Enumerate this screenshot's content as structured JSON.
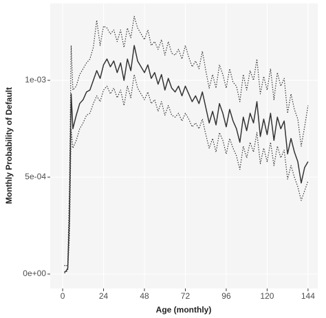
{
  "chart_data": {
    "type": "line",
    "x_label": "Age (monthly)",
    "y_label": "Monthly Probability of Default",
    "x": [
      1,
      2,
      3,
      4,
      5,
      6,
      8,
      10,
      12,
      14,
      16,
      18,
      20,
      22,
      24,
      26,
      28,
      30,
      32,
      34,
      36,
      38,
      40,
      42,
      44,
      46,
      48,
      50,
      52,
      54,
      56,
      58,
      60,
      62,
      64,
      66,
      68,
      70,
      72,
      74,
      76,
      78,
      80,
      82,
      84,
      86,
      88,
      90,
      92,
      94,
      96,
      98,
      100,
      102,
      104,
      106,
      108,
      110,
      112,
      114,
      116,
      118,
      120,
      122,
      124,
      126,
      128,
      130,
      132,
      134,
      136,
      138,
      140,
      142,
      144
    ],
    "series": [
      {
        "color": "#333333",
        "linestyle": "solid",
        "values": [
          1e-05,
          1.5e-05,
          3e-05,
          0.0003,
          0.00093,
          0.00075,
          0.00082,
          0.00088,
          0.0009,
          0.00094,
          0.00095,
          0.001,
          0.00105,
          0.00101,
          0.00108,
          0.00111,
          0.00107,
          0.0011,
          0.00104,
          0.00109,
          0.001,
          0.00111,
          0.00105,
          0.00118,
          0.0011,
          0.00107,
          0.00104,
          0.00108,
          0.00101,
          0.00104,
          0.00098,
          0.00103,
          0.00095,
          0.00101,
          0.00096,
          0.00094,
          0.00097,
          0.00092,
          0.00097,
          0.00093,
          0.00089,
          0.00092,
          0.00088,
          0.00094,
          0.00086,
          0.00078,
          0.00084,
          0.00077,
          0.00088,
          0.00083,
          0.00076,
          0.00085,
          0.00079,
          0.00075,
          0.00068,
          0.00081,
          0.00074,
          0.00083,
          0.00078,
          0.00089,
          0.00071,
          0.0008,
          0.00072,
          0.00083,
          0.00069,
          0.00081,
          0.00075,
          0.00079,
          0.00062,
          0.0007,
          0.00063,
          0.00058,
          0.00047,
          0.00055,
          0.00058
        ]
      },
      {
        "color": "#333333",
        "linestyle": "dotted",
        "values": [
          4.5e-05,
          4e-05,
          5e-05,
          0.00045,
          0.00118,
          0.00095,
          0.00097,
          0.00103,
          0.00106,
          0.00109,
          0.00111,
          0.00117,
          0.00131,
          0.00118,
          0.00128,
          0.00127,
          0.00124,
          0.00126,
          0.0012,
          0.00126,
          0.00117,
          0.00127,
          0.00122,
          0.00133,
          0.00127,
          0.00124,
          0.00121,
          0.00126,
          0.00118,
          0.0012,
          0.00116,
          0.00121,
          0.00113,
          0.0012,
          0.00114,
          0.00113,
          0.00116,
          0.00111,
          0.00118,
          0.00112,
          0.00107,
          0.0011,
          0.00106,
          0.00115,
          0.00105,
          0.00096,
          0.00103,
          0.00096,
          0.00108,
          0.00103,
          0.00096,
          0.00106,
          0.00099,
          0.00097,
          0.00089,
          0.00103,
          0.00095,
          0.00105,
          0.001,
          0.00111,
          0.00093,
          0.00102,
          0.00095,
          0.00106,
          0.0009,
          0.00104,
          0.00097,
          0.00101,
          0.00083,
          0.00093,
          0.00085,
          0.0008,
          0.00066,
          0.00076,
          0.00087
        ]
      },
      {
        "color": "#333333",
        "linestyle": "dotted",
        "values": [
          5e-06,
          1e-05,
          2e-05,
          0.0002,
          0.00075,
          0.00065,
          0.00069,
          0.00075,
          0.00078,
          0.00082,
          0.00083,
          0.00088,
          0.00092,
          0.00089,
          0.00095,
          0.00097,
          0.00093,
          0.00096,
          0.00091,
          0.00095,
          0.00087,
          0.00097,
          0.00091,
          0.00103,
          0.00096,
          0.00093,
          0.0009,
          0.00094,
          0.00088,
          0.0009,
          0.00084,
          0.00089,
          0.00082,
          0.00087,
          0.00082,
          0.00081,
          0.00083,
          0.00079,
          0.00083,
          0.0008,
          0.00076,
          0.00078,
          0.00075,
          0.0008,
          0.00072,
          0.00065,
          0.0007,
          0.00063,
          0.00073,
          0.00069,
          0.00062,
          0.0007,
          0.00065,
          0.00061,
          0.00054,
          0.00066,
          0.0006,
          0.00068,
          0.00063,
          0.00073,
          0.00057,
          0.00065,
          0.00058,
          0.00068,
          0.00056,
          0.00066,
          0.0006,
          0.00064,
          0.00049,
          0.00056,
          0.0005,
          0.00045,
          0.00038,
          0.00043,
          0.00048
        ]
      }
    ],
    "xlim": [
      -7.3,
      149.7
    ],
    "ylim": [
      -7.45e-05,
      0.001397
    ],
    "xticks": [
      0,
      24,
      48,
      72,
      96,
      120,
      144
    ],
    "yticks": [
      {
        "value": 0,
        "label": "0e+00"
      },
      {
        "value": 0.0005,
        "label": "5e-04"
      },
      {
        "value": 0.001,
        "label": "1e-03"
      }
    ],
    "grid": true,
    "panel_color": "#f5f5f5"
  }
}
